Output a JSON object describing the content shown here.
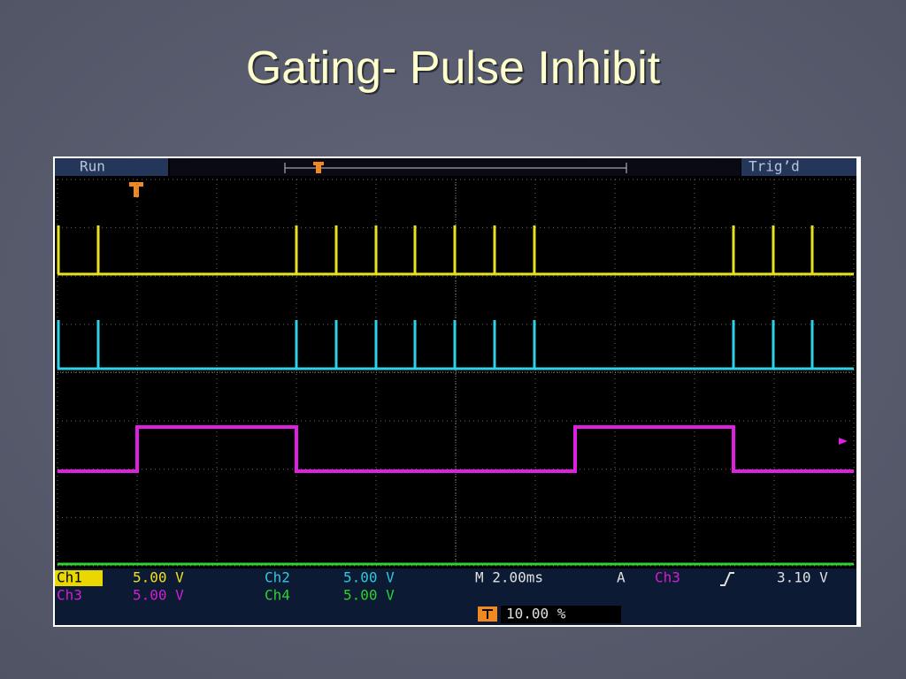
{
  "title": "Gating- Pulse Inhibit",
  "scope": {
    "status": "Run",
    "trigger_state": "Trig’d",
    "channels": [
      {
        "name": "Ch1",
        "scale": "5.00 V"
      },
      {
        "name": "Ch2",
        "scale": "5.00 V"
      },
      {
        "name": "Ch3",
        "scale": "5.00 V"
      },
      {
        "name": "Ch4",
        "scale": "5.00 V"
      }
    ],
    "timebase": "M 2.00ms",
    "trigger": {
      "mode": "A",
      "source": "Ch3",
      "level": "3.10 V"
    },
    "trigger_position": "10.00 %"
  }
}
